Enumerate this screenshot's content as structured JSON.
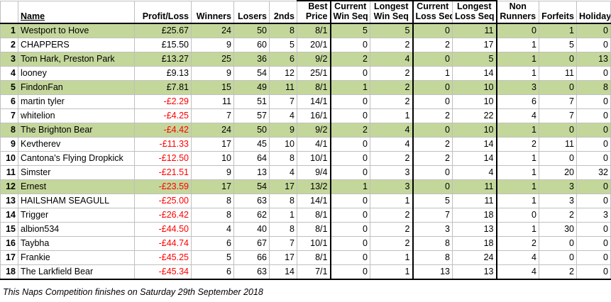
{
  "headers": {
    "rank": "",
    "name": "Name",
    "profit": "Profit/Loss",
    "winners": "Winners",
    "losers": "Losers",
    "seconds": "2nds",
    "best_price": [
      "Best",
      "Price"
    ],
    "current_win": [
      "Current",
      "Win Seq"
    ],
    "longest_win": [
      "Longest",
      "Win Seq"
    ],
    "current_loss": [
      "Current",
      "Loss Seq"
    ],
    "longest_loss": [
      "Longest",
      "Loss Seq"
    ],
    "non_runners": [
      "Non",
      "Runners"
    ],
    "forfeits": "Forfeits",
    "holiday": "Holiday"
  },
  "rows": [
    {
      "rank": "1",
      "name": "Westport to Hove",
      "profit": "£25.67",
      "winners": "24",
      "losers": "50",
      "seconds": "8",
      "best_price": "8/1",
      "current_win": "5",
      "longest_win": "5",
      "current_loss": "0",
      "longest_loss": "11",
      "non_runners": "0",
      "forfeits": "1",
      "holiday": "0",
      "highlight": true,
      "negative": false
    },
    {
      "rank": "2",
      "name": "CHAPPERS",
      "profit": "£15.50",
      "winners": "9",
      "losers": "60",
      "seconds": "5",
      "best_price": "20/1",
      "current_win": "0",
      "longest_win": "2",
      "current_loss": "2",
      "longest_loss": "17",
      "non_runners": "1",
      "forfeits": "5",
      "holiday": "0",
      "highlight": false,
      "negative": false
    },
    {
      "rank": "3",
      "name": "Tom Hark, Preston Park",
      "profit": "£13.27",
      "winners": "25",
      "losers": "36",
      "seconds": "6",
      "best_price": "9/2",
      "current_win": "2",
      "longest_win": "4",
      "current_loss": "0",
      "longest_loss": "5",
      "non_runners": "1",
      "forfeits": "0",
      "holiday": "13",
      "highlight": true,
      "negative": false
    },
    {
      "rank": "4",
      "name": "looney",
      "profit": "£9.13",
      "winners": "9",
      "losers": "54",
      "seconds": "12",
      "best_price": "25/1",
      "current_win": "0",
      "longest_win": "2",
      "current_loss": "1",
      "longest_loss": "14",
      "non_runners": "1",
      "forfeits": "11",
      "holiday": "0",
      "highlight": false,
      "negative": false
    },
    {
      "rank": "5",
      "name": "FindonFan",
      "profit": "£7.81",
      "winners": "15",
      "losers": "49",
      "seconds": "11",
      "best_price": "8/1",
      "current_win": "1",
      "longest_win": "2",
      "current_loss": "0",
      "longest_loss": "10",
      "non_runners": "3",
      "forfeits": "0",
      "holiday": "8",
      "highlight": true,
      "negative": false
    },
    {
      "rank": "6",
      "name": "martin tyler",
      "profit": "-£2.29",
      "winners": "11",
      "losers": "51",
      "seconds": "7",
      "best_price": "14/1",
      "current_win": "0",
      "longest_win": "2",
      "current_loss": "0",
      "longest_loss": "10",
      "non_runners": "6",
      "forfeits": "7",
      "holiday": "0",
      "highlight": false,
      "negative": true
    },
    {
      "rank": "7",
      "name": "whitelion",
      "profit": "-£4.25",
      "winners": "7",
      "losers": "57",
      "seconds": "4",
      "best_price": "16/1",
      "current_win": "0",
      "longest_win": "1",
      "current_loss": "2",
      "longest_loss": "22",
      "non_runners": "4",
      "forfeits": "7",
      "holiday": "0",
      "highlight": false,
      "negative": true
    },
    {
      "rank": "8",
      "name": "The Brighton Bear",
      "profit": "-£4.42",
      "winners": "24",
      "losers": "50",
      "seconds": "9",
      "best_price": "9/2",
      "current_win": "2",
      "longest_win": "4",
      "current_loss": "0",
      "longest_loss": "10",
      "non_runners": "1",
      "forfeits": "0",
      "holiday": "0",
      "highlight": true,
      "negative": true
    },
    {
      "rank": "9",
      "name": "Kevtherev",
      "profit": "-£11.33",
      "winners": "17",
      "losers": "45",
      "seconds": "10",
      "best_price": "4/1",
      "current_win": "0",
      "longest_win": "4",
      "current_loss": "2",
      "longest_loss": "14",
      "non_runners": "2",
      "forfeits": "11",
      "holiday": "0",
      "highlight": false,
      "negative": true
    },
    {
      "rank": "10",
      "name": "Cantona's Flying Dropkick",
      "profit": "-£12.50",
      "winners": "10",
      "losers": "64",
      "seconds": "8",
      "best_price": "10/1",
      "current_win": "0",
      "longest_win": "2",
      "current_loss": "2",
      "longest_loss": "14",
      "non_runners": "1",
      "forfeits": "0",
      "holiday": "0",
      "highlight": false,
      "negative": true
    },
    {
      "rank": "11",
      "name": "Simster",
      "profit": "-£21.51",
      "winners": "9",
      "losers": "13",
      "seconds": "4",
      "best_price": "9/4",
      "current_win": "0",
      "longest_win": "3",
      "current_loss": "0",
      "longest_loss": "4",
      "non_runners": "1",
      "forfeits": "20",
      "holiday": "32",
      "highlight": false,
      "negative": true
    },
    {
      "rank": "12",
      "name": "Ernest",
      "profit": "-£23.59",
      "winners": "17",
      "losers": "54",
      "seconds": "17",
      "best_price": "13/2",
      "current_win": "1",
      "longest_win": "3",
      "current_loss": "0",
      "longest_loss": "11",
      "non_runners": "1",
      "forfeits": "3",
      "holiday": "0",
      "highlight": true,
      "negative": true
    },
    {
      "rank": "13",
      "name": "HAILSHAM SEAGULL",
      "profit": "-£25.00",
      "winners": "8",
      "losers": "63",
      "seconds": "8",
      "best_price": "14/1",
      "current_win": "0",
      "longest_win": "1",
      "current_loss": "5",
      "longest_loss": "11",
      "non_runners": "1",
      "forfeits": "3",
      "holiday": "0",
      "highlight": false,
      "negative": true
    },
    {
      "rank": "14",
      "name": "Trigger",
      "profit": "-£26.42",
      "winners": "8",
      "losers": "62",
      "seconds": "1",
      "best_price": "8/1",
      "current_win": "0",
      "longest_win": "2",
      "current_loss": "7",
      "longest_loss": "18",
      "non_runners": "0",
      "forfeits": "2",
      "holiday": "3",
      "highlight": false,
      "negative": true
    },
    {
      "rank": "15",
      "name": "albion534",
      "profit": "-£44.50",
      "winners": "4",
      "losers": "40",
      "seconds": "8",
      "best_price": "8/1",
      "current_win": "0",
      "longest_win": "2",
      "current_loss": "3",
      "longest_loss": "13",
      "non_runners": "1",
      "forfeits": "30",
      "holiday": "0",
      "highlight": false,
      "negative": true
    },
    {
      "rank": "16",
      "name": "Taybha",
      "profit": "-£44.74",
      "winners": "6",
      "losers": "67",
      "seconds": "7",
      "best_price": "10/1",
      "current_win": "0",
      "longest_win": "2",
      "current_loss": "8",
      "longest_loss": "18",
      "non_runners": "2",
      "forfeits": "0",
      "holiday": "0",
      "highlight": false,
      "negative": true
    },
    {
      "rank": "17",
      "name": "Frankie",
      "profit": "-£45.25",
      "winners": "5",
      "losers": "66",
      "seconds": "17",
      "best_price": "8/1",
      "current_win": "0",
      "longest_win": "1",
      "current_loss": "8",
      "longest_loss": "24",
      "non_runners": "4",
      "forfeits": "0",
      "holiday": "0",
      "highlight": false,
      "negative": true
    },
    {
      "rank": "18",
      "name": "The Larkfield Bear",
      "profit": "-£45.34",
      "winners": "6",
      "losers": "63",
      "seconds": "14",
      "best_price": "7/1",
      "current_win": "0",
      "longest_win": "1",
      "current_loss": "13",
      "longest_loss": "13",
      "non_runners": "4",
      "forfeits": "2",
      "holiday": "0",
      "highlight": false,
      "negative": true
    }
  ],
  "footer": "This Naps Competition finishes on Saturday 29th September 2018",
  "colors": {
    "highlight": "#c4d79b",
    "negative": "#ff0000",
    "grid": "#bfbfbf"
  }
}
